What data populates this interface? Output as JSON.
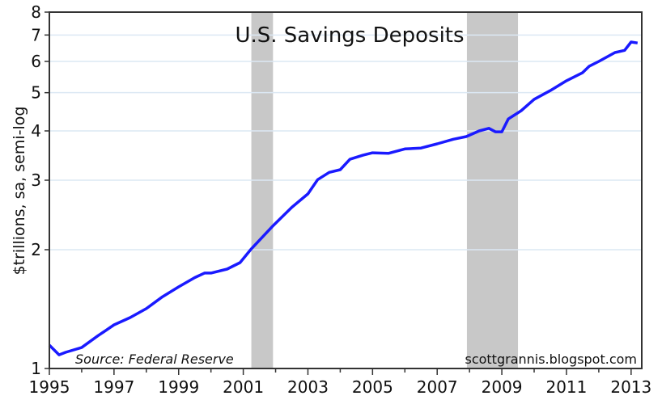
{
  "chart_data": {
    "type": "line",
    "title": "U.S. Savings Deposits",
    "ylabel": "$trillions, sa, semi-log",
    "xlabel": "",
    "yscale": "log",
    "ylim": [
      1,
      8
    ],
    "xlim": [
      1995,
      2013.33
    ],
    "yticks": [
      1,
      2,
      3,
      4,
      5,
      6,
      7,
      8
    ],
    "xticks": [
      1995,
      1997,
      1999,
      2001,
      2003,
      2005,
      2007,
      2009,
      2011,
      2013
    ],
    "grid": "horizontal",
    "colors": {
      "line": "#1a1aff",
      "recession": "#c8c8c8",
      "grid": "#dce8f4"
    },
    "recessions": [
      [
        2001.25,
        2001.92
      ],
      [
        2007.92,
        2009.5
      ]
    ],
    "annotations": {
      "source": "Source: Federal Reserve",
      "watermark": "scottgrannis.blogspot.com"
    },
    "series": [
      {
        "x": [
          1995.0,
          1995.3,
          1995.5,
          1996.0,
          1996.5,
          1997.0,
          1997.5,
          1998.0,
          1998.5,
          1999.0,
          1999.5,
          1999.8,
          2000.0,
          2000.5,
          2000.9,
          2001.25,
          2001.9,
          2002.5,
          2003.0,
          2003.3,
          2003.66,
          2004.0,
          2004.3,
          2004.7,
          2005.0,
          2005.5,
          2006.0,
          2006.5,
          2007.0,
          2007.5,
          2007.9,
          2008.3,
          2008.6,
          2008.8,
          2009.0,
          2009.2,
          2009.6,
          2010.0,
          2010.5,
          2011.0,
          2011.5,
          2011.7,
          2012.0,
          2012.5,
          2012.8,
          2013.0,
          2013.2
        ],
        "y": [
          1.146,
          1.083,
          1.099,
          1.13,
          1.21,
          1.29,
          1.346,
          1.418,
          1.52,
          1.61,
          1.7,
          1.745,
          1.745,
          1.786,
          1.855,
          2.01,
          2.29,
          2.56,
          2.77,
          3.01,
          3.14,
          3.19,
          3.39,
          3.47,
          3.52,
          3.51,
          3.6,
          3.62,
          3.71,
          3.81,
          3.87,
          4.0,
          4.06,
          3.98,
          3.98,
          4.29,
          4.5,
          4.81,
          5.06,
          5.36,
          5.62,
          5.83,
          6.0,
          6.32,
          6.4,
          6.72,
          6.68
        ]
      }
    ]
  }
}
